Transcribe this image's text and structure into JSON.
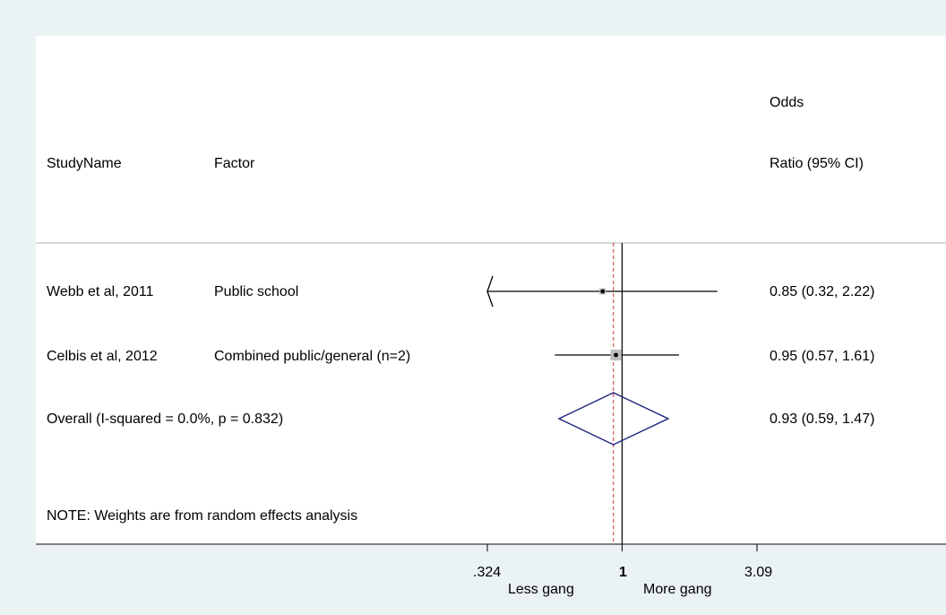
{
  "header": {
    "col_study": "StudyName",
    "col_factor": "Factor",
    "col_estimate_line1": "Odds",
    "col_estimate_line2": "Ratio (95% CI)"
  },
  "footer": {
    "note": "NOTE: Weights are from random effects analysis",
    "left_direction_label": "Less gang",
    "right_direction_label": "More gang"
  },
  "colors": {
    "background": "#eaf2f3",
    "panel": "#ffffff",
    "ci_line": "#000000",
    "weight_box": "#bdbdbd",
    "diamond": "#1a237e",
    "null_line": "#000000",
    "overall_line": "#c0392b"
  },
  "chart_data": {
    "type": "forest",
    "scale": "log",
    "null_value": 1,
    "overall_line_value": 0.93,
    "x_ticks": [
      {
        "value": 0.324,
        "label": ".324"
      },
      {
        "value": 1,
        "label": "1"
      },
      {
        "value": 3.09,
        "label": "3.09"
      }
    ],
    "studies": [
      {
        "study": "Webb et al, 2011",
        "factor": "Public school",
        "or": 0.85,
        "lo": 0.32,
        "hi": 2.22,
        "ci_text": "0.85 (0.32, 2.22)",
        "lower_truncated": true,
        "weight": 0.25
      },
      {
        "study": "Celbis et al, 2012",
        "factor": "Combined public/general (n=2)",
        "or": 0.95,
        "lo": 0.57,
        "hi": 1.61,
        "ci_text": "0.95 (0.57, 1.61)",
        "lower_truncated": false,
        "weight": 0.75
      }
    ],
    "overall": {
      "label": "Overall  (I-squared = 0.0%, p = 0.832)",
      "or": 0.93,
      "lo": 0.59,
      "hi": 1.47,
      "ci_text": "0.93 (0.59, 1.47)"
    }
  }
}
